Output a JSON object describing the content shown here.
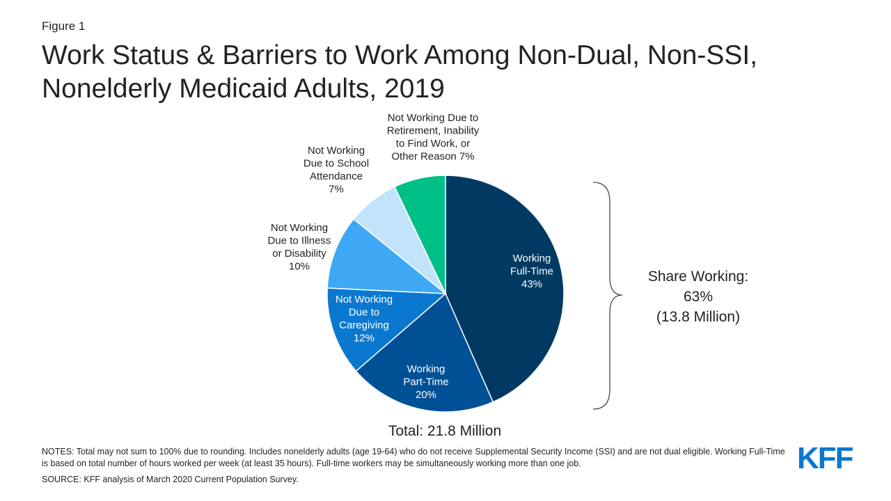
{
  "figure_label": "Figure 1",
  "title_line1": "Work Status & Barriers to Work Among Non-Dual, Non-SSI,",
  "title_line2": "Nonelderly Medicaid Adults, 2019",
  "chart_data": {
    "type": "pie",
    "title": "Work Status & Barriers to Work Among Non-Dual, Non-SSI, Nonelderly Medicaid Adults, 2019",
    "slices": [
      {
        "label_lines": [
          "Working",
          "Full-Time",
          "43%"
        ],
        "value": 43,
        "color": "#003a63",
        "label_color": "#ffffff"
      },
      {
        "label_lines": [
          "Working",
          "Part-Time",
          "20%"
        ],
        "value": 20,
        "color": "#005096",
        "label_color": "#ffffff"
      },
      {
        "label_lines": [
          "Not Working",
          "Due to",
          "Caregiving",
          "12%"
        ],
        "value": 12,
        "color": "#0b78d0",
        "label_color": "#ffffff"
      },
      {
        "label_lines": [
          "Not Working",
          "Due to Illness",
          "or Disability",
          "10%"
        ],
        "value": 10,
        "color": "#3ea8f5",
        "label_color": "#222222"
      },
      {
        "label_lines": [
          "Not Working",
          "Due to School",
          "Attendance",
          "7%"
        ],
        "value": 7,
        "color": "#c2e4fb",
        "label_color": "#222222"
      },
      {
        "label_lines": [
          "Not Working Due to",
          "Retirement, Inability",
          "to Find Work, or",
          "Other Reason 7%"
        ],
        "value": 7,
        "color": "#00bf87",
        "label_color": "#222222"
      }
    ],
    "annotation_lines": [
      "Share Working:",
      "63%",
      "(13.8 Million)"
    ],
    "total_label": "Total: 21.8 Million"
  },
  "notes": "NOTES: Total may not sum to 100% due to rounding. Includes nonelderly adults (age 19-64) who do not receive Supplemental Security Income (SSI) and are not dual eligible. Working Full-Time is based on total number of hours worked per week (at least 35 hours). Full-time workers may be simultaneously working more than one job.",
  "source": "SOURCE: KFF analysis of March 2020 Current Population Survey.",
  "logo_text": "KFF"
}
